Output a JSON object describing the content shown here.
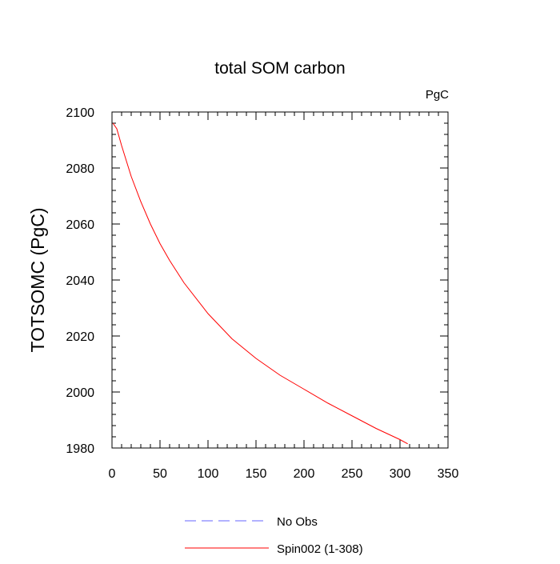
{
  "chart_data": {
    "type": "line",
    "title": "total SOM carbon",
    "units_label": "PgC",
    "xlabel": "",
    "ylabel": "TOTSOMC  (PgC)",
    "xlim": [
      0,
      350
    ],
    "ylim": [
      1980,
      2100
    ],
    "xticks": [
      0,
      50,
      100,
      150,
      200,
      250,
      300,
      350
    ],
    "yticks": [
      1980,
      2000,
      2020,
      2040,
      2060,
      2080,
      2100
    ],
    "series": [
      {
        "name": "No Obs",
        "color": "#6666ff",
        "style": "dashed",
        "x": [],
        "y": []
      },
      {
        "name": "Spin002 (1-308)",
        "color": "#ff0000",
        "style": "solid",
        "x": [
          1,
          5,
          10,
          20,
          30,
          40,
          50,
          60,
          75,
          100,
          125,
          150,
          175,
          200,
          225,
          250,
          275,
          300,
          308
        ],
        "y": [
          2096,
          2094,
          2088,
          2077,
          2068,
          2060,
          2053,
          2047,
          2039,
          2028,
          2019,
          2012,
          2006,
          2001,
          1996,
          1991.5,
          1987,
          1983,
          1981.5
        ]
      }
    ]
  }
}
